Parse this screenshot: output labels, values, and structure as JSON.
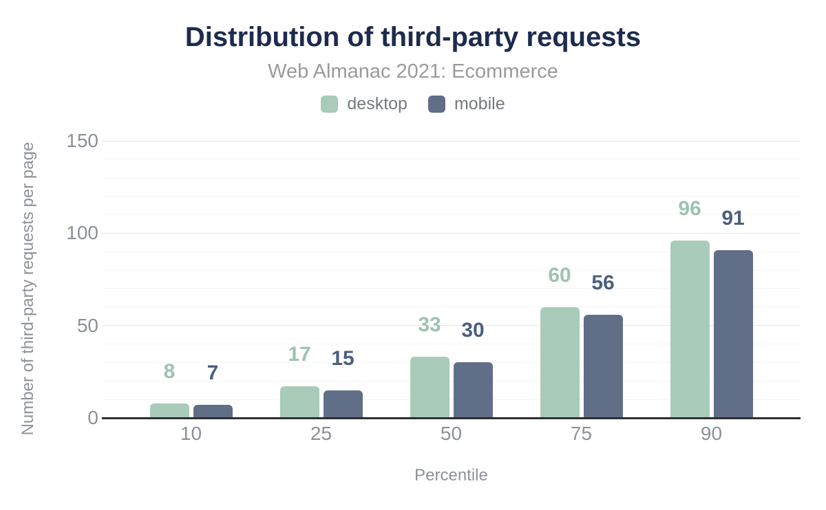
{
  "title": "Distribution of third-party requests",
  "subtitle": "Web Almanac 2021: Ecommerce",
  "legend": [
    {
      "label": "desktop",
      "color": "#a9cbb9"
    },
    {
      "label": "mobile",
      "color": "#616e88"
    }
  ],
  "palette": {
    "navy": "#1d2b4e",
    "subtitle_gray": "#9a9a9a",
    "legend_gray": "#75797f",
    "tick_gray": "#8b9099",
    "axis_title_gray": "#8d9299",
    "axis_line": "#2f2f2f",
    "grid_major": "#e7e7e7",
    "grid_minor": "#f4f4f4"
  },
  "chart_data": {
    "type": "bar",
    "title": "Distribution of third-party requests",
    "subtitle": "Web Almanac 2021: Ecommerce",
    "categories": [
      "10",
      "25",
      "50",
      "75",
      "90"
    ],
    "series": [
      {
        "name": "desktop",
        "color": "#a9cbb9",
        "label_color": "#9dc3b0",
        "values": [
          8,
          17,
          33,
          60,
          96
        ]
      },
      {
        "name": "mobile",
        "color": "#616e88",
        "label_color": "#4d5e7e",
        "values": [
          7,
          15,
          30,
          56,
          91
        ]
      }
    ],
    "data_labels_shown": true,
    "xlabel": "Percentile",
    "ylabel": "Number of third-party requests per page",
    "ylim": [
      0,
      150
    ],
    "yticks": [
      0,
      50,
      100,
      150
    ],
    "minor_grid_step": 10,
    "grid": true,
    "legend_position": "top"
  }
}
